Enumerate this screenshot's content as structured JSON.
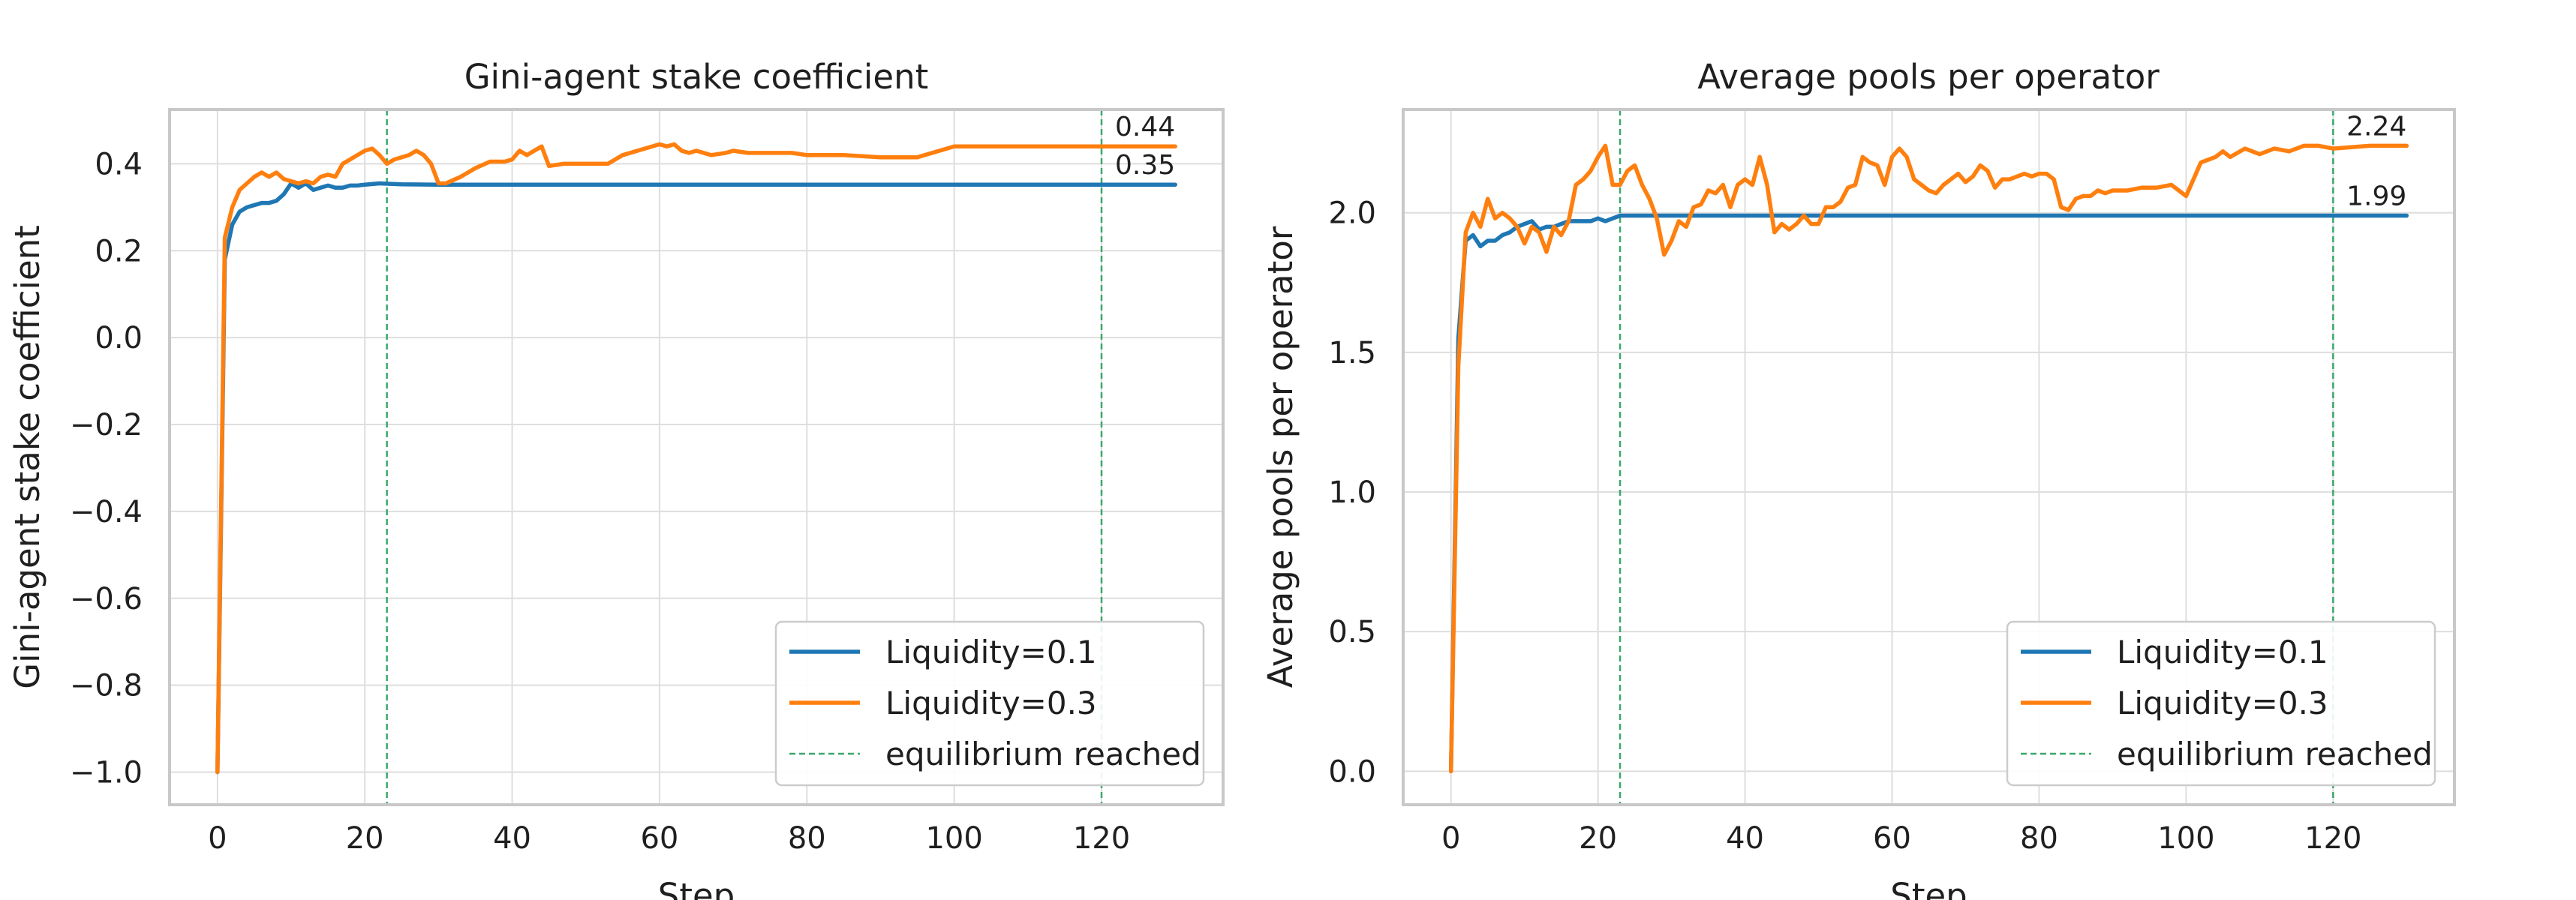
{
  "chart_data": [
    {
      "type": "line",
      "title": "Gini-agent stake coefficient",
      "xlabel": "Step",
      "ylabel": "Gini-agent stake coefficient",
      "xlim": [
        -6.5,
        136.5
      ],
      "ylim": [
        -1.075,
        0.525
      ],
      "xticks": [
        0,
        20,
        40,
        60,
        80,
        100,
        120
      ],
      "xtick_labels": [
        "0",
        "20",
        "40",
        "60",
        "80",
        "100",
        "120"
      ],
      "yticks": [
        -1.0,
        -0.8,
        -0.6,
        -0.4,
        -0.2,
        0.0,
        0.2,
        0.4
      ],
      "ytick_labels": [
        "−1.0",
        "−0.8",
        "−0.6",
        "−0.4",
        "−0.2",
        "0.0",
        "0.2",
        "0.4"
      ],
      "grid": true,
      "legend_position": "lower-right",
      "vlines": [
        23,
        120
      ],
      "vline_label": "equilibrium reached",
      "series": [
        {
          "name": "Liquidity=0.1",
          "color": "#1f77b4",
          "x": [
            0,
            1,
            2,
            3,
            4,
            5,
            6,
            7,
            8,
            9,
            10,
            11,
            12,
            13,
            14,
            15,
            16,
            17,
            18,
            19,
            20,
            22,
            25,
            30,
            40,
            60,
            80,
            100,
            120,
            130
          ],
          "y": [
            -1.0,
            0.18,
            0.26,
            0.29,
            0.3,
            0.305,
            0.31,
            0.31,
            0.315,
            0.33,
            0.355,
            0.345,
            0.355,
            0.34,
            0.345,
            0.35,
            0.345,
            0.345,
            0.35,
            0.35,
            0.352,
            0.355,
            0.353,
            0.352,
            0.352,
            0.352,
            0.352,
            0.352,
            0.352,
            0.352
          ],
          "end_label": "0.35"
        },
        {
          "name": "Liquidity=0.3",
          "color": "#ff7f0e",
          "x": [
            0,
            1,
            2,
            3,
            4,
            5,
            6,
            7,
            8,
            9,
            10,
            11,
            12,
            13,
            14,
            15,
            16,
            17,
            18,
            19,
            20,
            21,
            22,
            23,
            24,
            25,
            26,
            27,
            28,
            29,
            30,
            31,
            33,
            35,
            37,
            39,
            40,
            41,
            42,
            43,
            44,
            45,
            47,
            49,
            51,
            53,
            55,
            57,
            59,
            60,
            61,
            62,
            63,
            64,
            65,
            67,
            69,
            70,
            72,
            75,
            78,
            80,
            85,
            90,
            95,
            98,
            100,
            105,
            110,
            115,
            120,
            130
          ],
          "y": [
            -1.0,
            0.23,
            0.3,
            0.34,
            0.355,
            0.37,
            0.38,
            0.37,
            0.38,
            0.365,
            0.36,
            0.355,
            0.36,
            0.355,
            0.37,
            0.375,
            0.37,
            0.4,
            0.41,
            0.42,
            0.43,
            0.435,
            0.42,
            0.4,
            0.41,
            0.415,
            0.42,
            0.43,
            0.42,
            0.4,
            0.355,
            0.355,
            0.37,
            0.39,
            0.405,
            0.405,
            0.41,
            0.43,
            0.42,
            0.43,
            0.44,
            0.395,
            0.4,
            0.4,
            0.4,
            0.4,
            0.42,
            0.43,
            0.44,
            0.445,
            0.44,
            0.445,
            0.43,
            0.425,
            0.43,
            0.42,
            0.425,
            0.43,
            0.425,
            0.425,
            0.425,
            0.42,
            0.42,
            0.415,
            0.415,
            0.43,
            0.44,
            0.44,
            0.44,
            0.44,
            0.44,
            0.44
          ],
          "end_label": "0.44"
        }
      ]
    },
    {
      "type": "line",
      "title": "Average pools per operator",
      "xlabel": "Step",
      "ylabel": "Average pools per operator",
      "xlim": [
        -6.5,
        136.5
      ],
      "ylim": [
        -0.12,
        2.37
      ],
      "xticks": [
        0,
        20,
        40,
        60,
        80,
        100,
        120
      ],
      "xtick_labels": [
        "0",
        "20",
        "40",
        "60",
        "80",
        "100",
        "120"
      ],
      "yticks": [
        0.0,
        0.5,
        1.0,
        1.5,
        2.0
      ],
      "ytick_labels": [
        "0.0",
        "0.5",
        "1.0",
        "1.5",
        "2.0"
      ],
      "grid": true,
      "legend_position": "lower-right",
      "vlines": [
        23,
        120
      ],
      "vline_label": "equilibrium reached",
      "series": [
        {
          "name": "Liquidity=0.1",
          "color": "#1f77b4",
          "x": [
            0,
            1,
            2,
            3,
            4,
            5,
            6,
            7,
            8,
            9,
            10,
            11,
            12,
            13,
            14,
            15,
            16,
            17,
            18,
            19,
            20,
            21,
            22,
            23,
            30,
            60,
            90,
            120,
            130
          ],
          "y": [
            0.0,
            1.55,
            1.9,
            1.92,
            1.88,
            1.9,
            1.9,
            1.92,
            1.93,
            1.95,
            1.96,
            1.97,
            1.94,
            1.95,
            1.95,
            1.96,
            1.97,
            1.97,
            1.97,
            1.97,
            1.98,
            1.97,
            1.98,
            1.99,
            1.99,
            1.99,
            1.99,
            1.99,
            1.99
          ],
          "end_label": "1.99"
        },
        {
          "name": "Liquidity=0.3",
          "color": "#ff7f0e",
          "x": [
            0,
            1,
            2,
            3,
            4,
            5,
            6,
            7,
            8,
            9,
            10,
            11,
            12,
            13,
            14,
            15,
            16,
            17,
            18,
            19,
            20,
            21,
            22,
            23,
            24,
            25,
            26,
            27,
            28,
            29,
            30,
            31,
            32,
            33,
            34,
            35,
            36,
            37,
            38,
            39,
            40,
            41,
            42,
            43,
            44,
            45,
            46,
            47,
            48,
            49,
            50,
            51,
            52,
            53,
            54,
            55,
            56,
            57,
            58,
            59,
            60,
            61,
            62,
            63,
            64,
            65,
            66,
            67,
            68,
            69,
            70,
            71,
            72,
            73,
            74,
            75,
            76,
            77,
            78,
            79,
            80,
            81,
            82,
            83,
            84,
            85,
            86,
            87,
            88,
            89,
            90,
            92,
            94,
            96,
            98,
            100,
            101,
            102,
            103,
            104,
            105,
            106,
            108,
            110,
            112,
            114,
            116,
            118,
            120,
            125,
            130
          ],
          "y": [
            0.0,
            1.45,
            1.93,
            2.0,
            1.95,
            2.05,
            1.98,
            2.0,
            1.98,
            1.95,
            1.89,
            1.95,
            1.93,
            1.86,
            1.95,
            1.92,
            1.97,
            2.1,
            2.12,
            2.15,
            2.2,
            2.24,
            2.1,
            2.1,
            2.15,
            2.17,
            2.1,
            2.05,
            1.98,
            1.85,
            1.9,
            1.97,
            1.95,
            2.02,
            2.03,
            2.08,
            2.07,
            2.1,
            2.02,
            2.1,
            2.12,
            2.1,
            2.2,
            2.1,
            1.93,
            1.96,
            1.94,
            1.96,
            1.99,
            1.96,
            1.96,
            2.02,
            2.02,
            2.04,
            2.09,
            2.1,
            2.2,
            2.18,
            2.17,
            2.1,
            2.2,
            2.23,
            2.2,
            2.12,
            2.1,
            2.08,
            2.07,
            2.1,
            2.12,
            2.14,
            2.11,
            2.13,
            2.17,
            2.15,
            2.09,
            2.12,
            2.12,
            2.13,
            2.14,
            2.13,
            2.14,
            2.14,
            2.12,
            2.02,
            2.01,
            2.05,
            2.06,
            2.06,
            2.08,
            2.07,
            2.08,
            2.08,
            2.09,
            2.09,
            2.1,
            2.06,
            2.12,
            2.18,
            2.19,
            2.2,
            2.22,
            2.2,
            2.23,
            2.21,
            2.23,
            2.22,
            2.24,
            2.24,
            2.23,
            2.24,
            2.24
          ],
          "end_label": "2.24"
        }
      ]
    }
  ]
}
